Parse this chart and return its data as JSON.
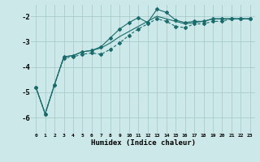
{
  "xlabel": "Humidex (Indice chaleur)",
  "bg_color": "#cce8e8",
  "grid_color": "#aacccc",
  "line_color": "#1a6b6b",
  "xlim": [
    -0.5,
    23.5
  ],
  "ylim": [
    -6.6,
    -1.55
  ],
  "yticks": [
    -6,
    -5,
    -4,
    -3,
    -2
  ],
  "xticks": [
    0,
    1,
    2,
    3,
    4,
    5,
    6,
    7,
    8,
    9,
    10,
    11,
    12,
    13,
    14,
    15,
    16,
    17,
    18,
    19,
    20,
    21,
    22,
    23
  ],
  "line1_x": [
    0,
    1,
    2,
    3,
    4,
    5,
    6,
    7,
    8,
    9,
    10,
    11,
    12,
    13,
    14,
    15,
    16,
    17,
    18,
    19,
    20,
    21,
    22,
    23
  ],
  "line1_y": [
    -4.8,
    -5.85,
    -4.7,
    -3.6,
    -3.55,
    -3.4,
    -3.35,
    -3.2,
    -2.85,
    -2.5,
    -2.25,
    -2.05,
    -2.25,
    -1.72,
    -1.85,
    -2.15,
    -2.25,
    -2.2,
    -2.2,
    -2.1,
    -2.1,
    -2.1,
    -2.1,
    -2.1
  ],
  "line2_x": [
    0,
    1,
    2,
    3,
    4,
    5,
    6,
    7,
    8,
    9,
    10,
    11,
    12,
    13,
    14,
    15,
    16,
    17,
    18,
    19,
    20,
    21,
    22,
    23
  ],
  "line2_y": [
    -4.8,
    -5.85,
    -4.7,
    -3.65,
    -3.6,
    -3.5,
    -3.45,
    -3.5,
    -3.3,
    -3.05,
    -2.75,
    -2.5,
    -2.3,
    -2.1,
    -2.2,
    -2.4,
    -2.45,
    -2.3,
    -2.3,
    -2.2,
    -2.2,
    -2.1,
    -2.1,
    -2.1
  ],
  "line3_x": [
    0,
    1,
    2,
    3,
    4,
    5,
    6,
    7,
    8,
    9,
    10,
    11,
    12,
    13,
    14,
    15,
    16,
    17,
    18,
    19,
    20,
    21,
    22,
    23
  ],
  "line3_y": [
    -4.8,
    -5.85,
    -4.7,
    -3.6,
    -3.55,
    -3.4,
    -3.35,
    -3.25,
    -3.05,
    -2.8,
    -2.6,
    -2.4,
    -2.2,
    -2.0,
    -2.1,
    -2.2,
    -2.3,
    -2.25,
    -2.2,
    -2.1,
    -2.1,
    -2.1,
    -2.1,
    -2.1
  ]
}
